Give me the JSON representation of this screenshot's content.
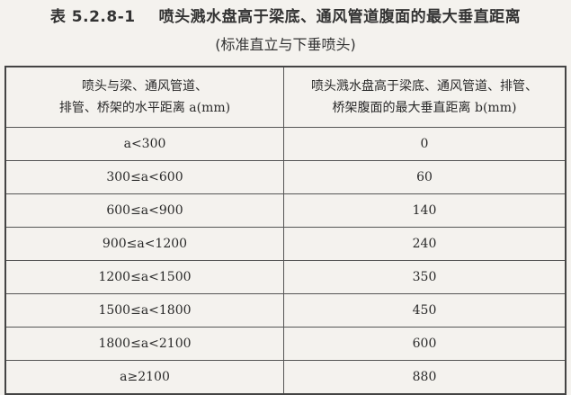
{
  "title": {
    "number": "表 5.2.8-1",
    "text": "喷头溅水盘高于梁底、通风管道腹面的最大垂直距离"
  },
  "subtitle": "(标准直立与下垂喷头)",
  "table": {
    "headers": [
      {
        "line1": "喷头与梁、通风管道、",
        "line2": "排管、桥架的水平距离 a(mm)"
      },
      {
        "line1": "喷头溅水盘高于梁底、通风管道、排管、",
        "line2": "桥架腹面的最大垂直距离 b(mm)"
      }
    ],
    "rows": [
      [
        "a<300",
        "0"
      ],
      [
        "300≤a<600",
        "60"
      ],
      [
        "600≤a<900",
        "140"
      ],
      [
        "900≤a<1200",
        "240"
      ],
      [
        "1200≤a<1500",
        "350"
      ],
      [
        "1500≤a<1800",
        "450"
      ],
      [
        "1800≤a<2100",
        "600"
      ],
      [
        "a≥2100",
        "880"
      ]
    ]
  }
}
